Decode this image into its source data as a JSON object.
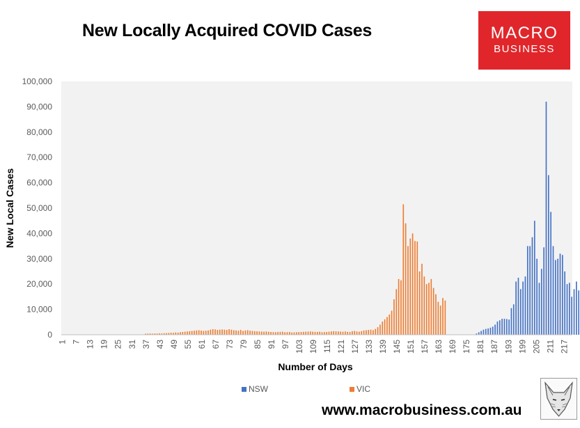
{
  "title": "New Locally Acquired COVID Cases",
  "logo": {
    "line1": "MACRO",
    "line2": "BUSINESS",
    "color": "#e0262b"
  },
  "website": "www.macrobusiness.com.au",
  "legend": {
    "nsw": "NSW",
    "vic": "VIC"
  },
  "chart_data": {
    "type": "bar",
    "title": "New Locally Acquired COVID Cases",
    "xlabel": "Number of Days",
    "ylabel": "New Local Cases",
    "x_tick_labels": [
      "1",
      "7",
      "13",
      "19",
      "25",
      "31",
      "37",
      "43",
      "49",
      "55",
      "61",
      "67",
      "73",
      "79",
      "85",
      "91",
      "97",
      "103",
      "109",
      "115",
      "121",
      "127",
      "133",
      "139",
      "145",
      "151",
      "157",
      "163",
      "169",
      "175",
      "181",
      "187",
      "193",
      "199",
      "205",
      "211",
      "217"
    ],
    "y_tick_labels": [
      "0",
      "10,000",
      "20,000",
      "30,000",
      "40,000",
      "50,000",
      "60,000",
      "70,000",
      "80,000",
      "90,000",
      "100,000"
    ],
    "ylim": [
      0,
      100000
    ],
    "x_range": [
      1,
      220
    ],
    "grid": false,
    "legend_position": "bottom",
    "colors": {
      "NSW": "#4472c4",
      "VIC": "#ed7d31"
    },
    "series": [
      {
        "name": "NSW",
        "start_day": 150,
        "values": [
          0,
          0,
          0,
          0,
          0,
          0,
          0,
          0,
          0,
          0,
          0,
          0,
          0,
          0,
          0,
          0,
          0,
          0,
          0,
          0,
          0,
          0,
          0,
          0,
          0,
          0,
          0,
          0,
          0,
          500,
          1000,
          1500,
          2000,
          2300,
          2500,
          2800,
          3200,
          4000,
          5200,
          5700,
          6300,
          6300,
          6200,
          6000,
          10500,
          12000,
          21000,
          22500,
          18000,
          21000,
          23000,
          35000,
          35000,
          38500,
          45000,
          30000,
          20500,
          26000,
          34500,
          92000,
          63000,
          48500,
          35000,
          29500,
          30000,
          32000,
          31500,
          25000,
          20000,
          20500,
          15000,
          18000,
          21000,
          17500
        ]
      },
      {
        "name": "VIC",
        "start_day": 37,
        "values": [
          400,
          450,
          500,
          420,
          500,
          480,
          550,
          520,
          600,
          650,
          700,
          800,
          750,
          900,
          850,
          1000,
          1100,
          1200,
          1300,
          1400,
          1500,
          1600,
          1700,
          1800,
          1650,
          1500,
          1600,
          1700,
          2000,
          2200,
          2100,
          1900,
          2000,
          2100,
          2000,
          1900,
          2200,
          2000,
          1800,
          1700,
          1600,
          1900,
          1500,
          1700,
          1800,
          1600,
          1500,
          1400,
          1350,
          1300,
          1250,
          1200,
          1300,
          1150,
          1100,
          1050,
          1000,
          1100,
          1150,
          1200,
          1000,
          1050,
          1100,
          900,
          950,
          1000,
          1050,
          1100,
          1150,
          1200,
          1250,
          1300,
          1200,
          1150,
          1100,
          1200,
          1000,
          1050,
          1100,
          1200,
          1300,
          1400,
          1350,
          1300,
          1250,
          1200,
          1300,
          1150,
          1100,
          1400,
          1500,
          1300,
          1200,
          1400,
          1700,
          1800,
          1900,
          2000,
          1800,
          2300,
          3000,
          4000,
          5200,
          6100,
          7000,
          8000,
          9500,
          14000,
          18000,
          22000,
          21500,
          51500,
          44000,
          35000,
          38000,
          40000,
          37000,
          36800,
          25000,
          28000,
          23000,
          20000,
          20500,
          22000,
          18500,
          16000,
          13000,
          11500,
          14500,
          13500
        ]
      }
    ]
  }
}
